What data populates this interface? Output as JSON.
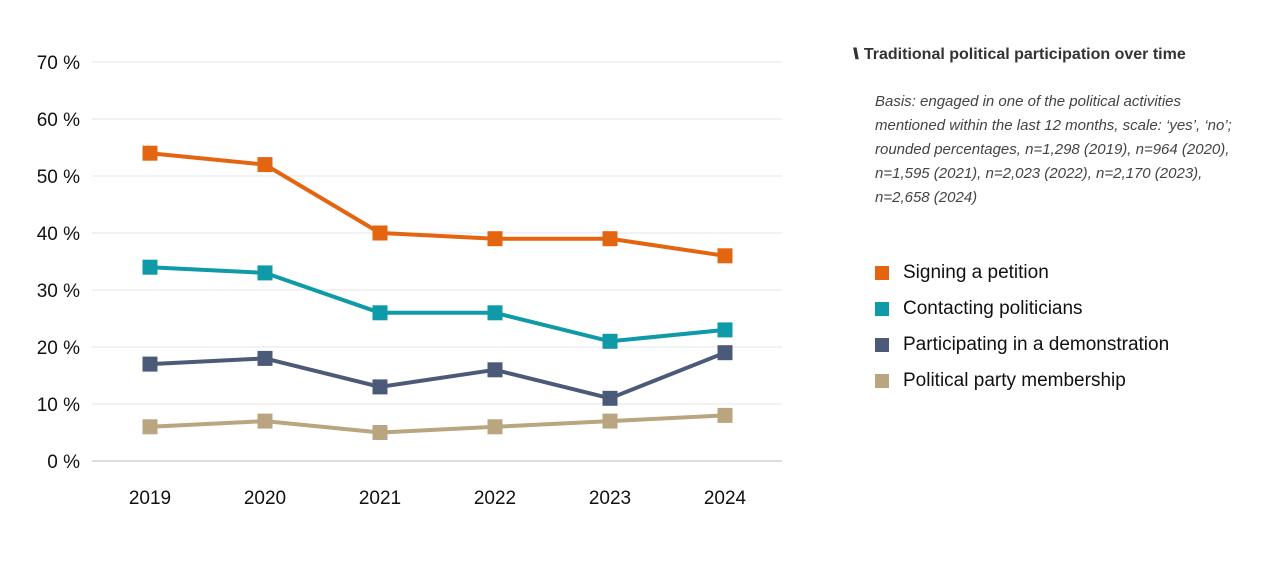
{
  "chart_data": {
    "type": "line",
    "title": "Traditional political participation over time",
    "note": "Basis: engaged in one of the political activities mentioned within the last 12 months, scale: ‘yes’, ‘no’; rounded percentages, n=1,298 (2019), n=964 (2020), n=1,595 (2021), n=2,023 (2022), n=2,170 (2023), n=2,658 (2024)",
    "categories": [
      "2019",
      "2020",
      "2021",
      "2022",
      "2023",
      "2024"
    ],
    "ylim": [
      0,
      70
    ],
    "yticks": [
      0,
      10,
      20,
      30,
      40,
      50,
      60,
      70
    ],
    "ytick_labels": [
      "0 %",
      "10 %",
      "20 %",
      "30 %",
      "40 %",
      "50 %",
      "60 %",
      "70 %"
    ],
    "grid": true,
    "legend_placement": "right",
    "series": [
      {
        "name": "Signing a petition",
        "color": "#e3650f",
        "values": [
          54,
          52,
          40,
          39,
          39,
          36
        ]
      },
      {
        "name": "Contacting politicians",
        "color": "#0e9aa7",
        "values": [
          34,
          33,
          26,
          26,
          21,
          23
        ]
      },
      {
        "name": "Participating in a demonstration",
        "color": "#4b5a78",
        "values": [
          17,
          18,
          13,
          16,
          11,
          19
        ]
      },
      {
        "name": "Political party membership",
        "color": "#b9a57f",
        "values": [
          6,
          7,
          5,
          6,
          7,
          8
        ]
      }
    ]
  }
}
